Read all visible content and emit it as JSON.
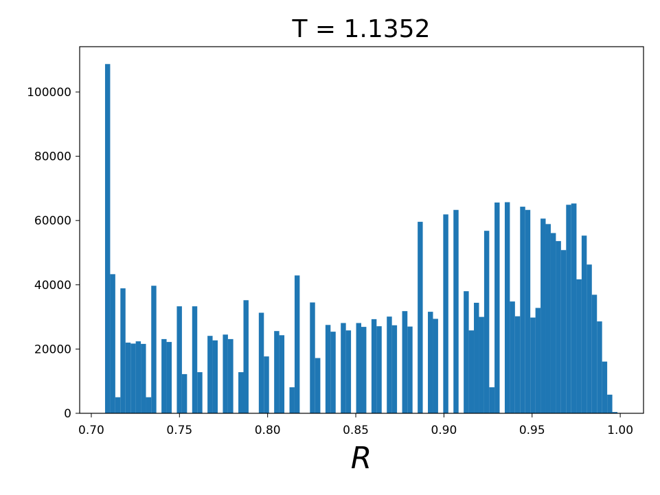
{
  "chart_data": {
    "type": "histogram",
    "title": "T = 1.1352",
    "x_label": "R",
    "color": "#1f77b4",
    "bins": [
      0.7078,
      0.7107,
      0.7136,
      0.7165,
      0.7194,
      0.7223,
      0.7252,
      0.7281,
      0.731,
      0.734,
      0.7369,
      0.7398,
      0.7427,
      0.7456,
      0.7485,
      0.7514,
      0.7543,
      0.7572,
      0.7601,
      0.763,
      0.7659,
      0.7688,
      0.7717,
      0.7746,
      0.7775,
      0.7805,
      0.7834,
      0.7863,
      0.7892,
      0.7921,
      0.795,
      0.7979,
      0.8008,
      0.8037,
      0.8066,
      0.8095,
      0.8124,
      0.8153,
      0.8182,
      0.8211,
      0.824,
      0.8269,
      0.8299,
      0.8328,
      0.8357,
      0.8386,
      0.8415,
      0.8444,
      0.8473,
      0.8502,
      0.8531,
      0.856,
      0.8589,
      0.8618,
      0.8647,
      0.8676,
      0.8705,
      0.8734,
      0.8763,
      0.8793,
      0.8822,
      0.8851,
      0.888,
      0.8909,
      0.8938,
      0.8967,
      0.8996,
      0.9025,
      0.9054,
      0.9083,
      0.9112,
      0.9141,
      0.917,
      0.9199,
      0.9228,
      0.9257,
      0.9287,
      0.9316,
      0.9345,
      0.9374,
      0.9403,
      0.9432,
      0.9461,
      0.949,
      0.9519,
      0.9548,
      0.9577,
      0.9606,
      0.9635,
      0.9664,
      0.9693,
      0.9722,
      0.9752,
      0.9781,
      0.981,
      0.9839,
      0.9868,
      0.9897,
      0.9926,
      0.9955,
      0.9984
    ],
    "values": [
      108700,
      43300,
      5000,
      38900,
      22000,
      21700,
      22400,
      21600,
      5000,
      39700,
      0,
      23100,
      22200,
      0,
      33300,
      12200,
      0,
      33300,
      12800,
      0,
      24100,
      22700,
      0,
      24500,
      23100,
      0,
      12800,
      35200,
      0,
      0,
      31300,
      17700,
      0,
      25600,
      24300,
      0,
      8100,
      42900,
      0,
      0,
      34500,
      17200,
      0,
      27500,
      25400,
      0,
      28100,
      25800,
      0,
      28100,
      26900,
      0,
      29300,
      27100,
      0,
      30100,
      27400,
      0,
      31800,
      27000,
      0,
      59600,
      0,
      31600,
      29400,
      0,
      61900,
      0,
      63300,
      0,
      38000,
      25800,
      34400,
      30000,
      56800,
      8100,
      65600,
      0,
      65700,
      34800,
      30200,
      64300,
      63300,
      29800,
      32800,
      60600,
      58900,
      56100,
      53600,
      50800,
      64900,
      65300,
      41700,
      55300,
      46300,
      36900,
      28600,
      16100,
      5800,
      400
    ],
    "xlim": [
      0.6934,
      1.0132
    ],
    "ylim": [
      0,
      114100
    ],
    "xticks": [
      {
        "value": 0.7,
        "label": "0.70"
      },
      0.75,
      {
        "value": 0.8,
        "label": "0.80"
      },
      0.85,
      {
        "value": 0.9,
        "label": "0.90"
      },
      0.95,
      {
        "value": 1.0,
        "label": "1.00"
      }
    ],
    "yticks": [
      0,
      20000,
      40000,
      60000,
      80000,
      100000
    ]
  }
}
